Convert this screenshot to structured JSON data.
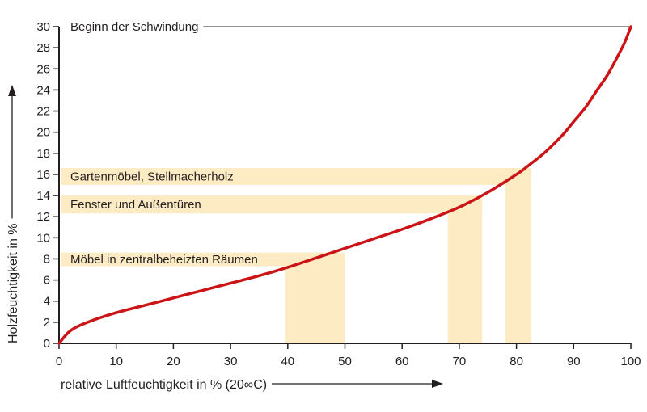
{
  "chart_data": {
    "type": "line",
    "title": "",
    "xlabel": "relative Luftfeuchtigkeit in % (20∞C)",
    "ylabel": "Holzfeuchtigkeit in %",
    "xlim": [
      0,
      100
    ],
    "ylim": [
      0,
      30
    ],
    "x_ticks": [
      "0",
      "10",
      "20",
      "30",
      "40",
      "50",
      "60",
      "70",
      "80",
      "90",
      "100"
    ],
    "y_ticks": [
      "0",
      "2",
      "4",
      "6",
      "8",
      "10",
      "12",
      "14",
      "16",
      "18",
      "20",
      "22",
      "24",
      "26",
      "28",
      "30"
    ],
    "grid": false,
    "series": [
      {
        "name": "",
        "color": "#cc1417",
        "x": [
          0,
          2,
          5,
          10,
          15,
          20,
          25,
          30,
          35,
          40,
          45,
          50,
          55,
          60,
          65,
          70,
          75,
          80,
          82,
          85,
          88,
          90,
          92,
          94,
          96,
          98,
          99,
          100
        ],
        "y": [
          0,
          1.2,
          2.0,
          2.9,
          3.6,
          4.3,
          5.0,
          5.7,
          6.4,
          7.2,
          8.1,
          9.0,
          9.9,
          10.8,
          11.8,
          12.9,
          14.3,
          16.0,
          16.8,
          18.1,
          19.7,
          21.0,
          22.3,
          23.9,
          25.5,
          27.5,
          28.6,
          30.0
        ]
      }
    ],
    "bands": [
      {
        "label": "Gartenmöbel, Stellmacherholz",
        "y_range": [
          15,
          16.6
        ],
        "x_range": [
          78,
          82.5
        ]
      },
      {
        "label": "Fenster und Außentüren",
        "y_range": [
          12.3,
          14
        ],
        "x_range": [
          68,
          74
        ]
      },
      {
        "label": "Möbel in zentralbeheizten Räumen",
        "y_range": [
          7.3,
          8.6
        ],
        "x_range": [
          39.5,
          50
        ]
      }
    ],
    "annotations": [
      {
        "text": "Beginn der Schwindung",
        "y": 30
      }
    ],
    "band_color": "#fdebc4",
    "axis_color": "#231f20"
  }
}
